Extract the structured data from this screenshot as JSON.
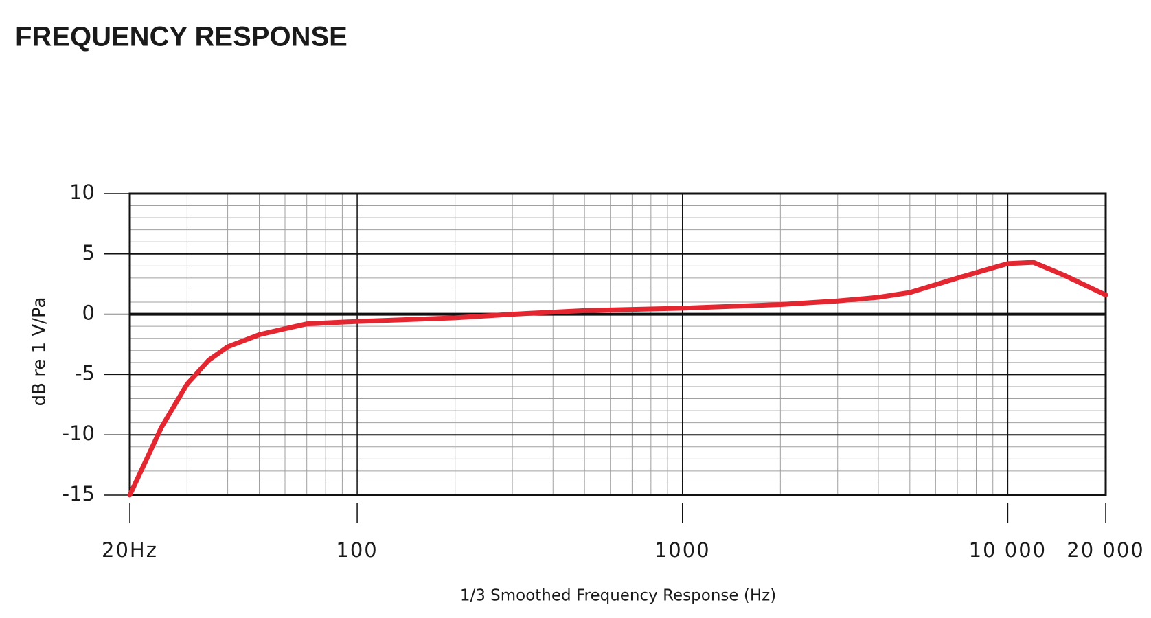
{
  "chart_data": {
    "type": "line",
    "title": "FREQUENCY RESPONSE",
    "y_label": "dB re 1 V/Pa",
    "x_label": "1/3 Smoothed Frequency Response (Hz)",
    "x_scale": "log",
    "xlim": [
      20,
      20000
    ],
    "ylim": [
      -15,
      10
    ],
    "xticks": [
      {
        "value": 20,
        "label": "20Hz"
      },
      100,
      1000,
      {
        "value": 10000,
        "label": "10 000"
      },
      {
        "value": 20000,
        "label": "20 000"
      }
    ],
    "yticks": [
      -15,
      -10,
      -5,
      0,
      5,
      10
    ],
    "grid": true,
    "minor_grid": true,
    "x": [
      20,
      25,
      30,
      35,
      40,
      50,
      60,
      70,
      100,
      200,
      300,
      500,
      1000,
      2000,
      3000,
      4000,
      5000,
      7000,
      10000,
      12000,
      15000,
      20000
    ],
    "series": [
      {
        "name": "Frequency response",
        "color": "#e32630",
        "values": [
          -15,
          -9.4,
          -5.8,
          -3.8,
          -2.7,
          -1.7,
          -1.2,
          -0.8,
          -0.6,
          -0.3,
          0,
          0.3,
          0.5,
          0.8,
          1.1,
          1.4,
          1.8,
          3.0,
          4.2,
          4.3,
          3.2,
          1.6
        ]
      }
    ]
  }
}
